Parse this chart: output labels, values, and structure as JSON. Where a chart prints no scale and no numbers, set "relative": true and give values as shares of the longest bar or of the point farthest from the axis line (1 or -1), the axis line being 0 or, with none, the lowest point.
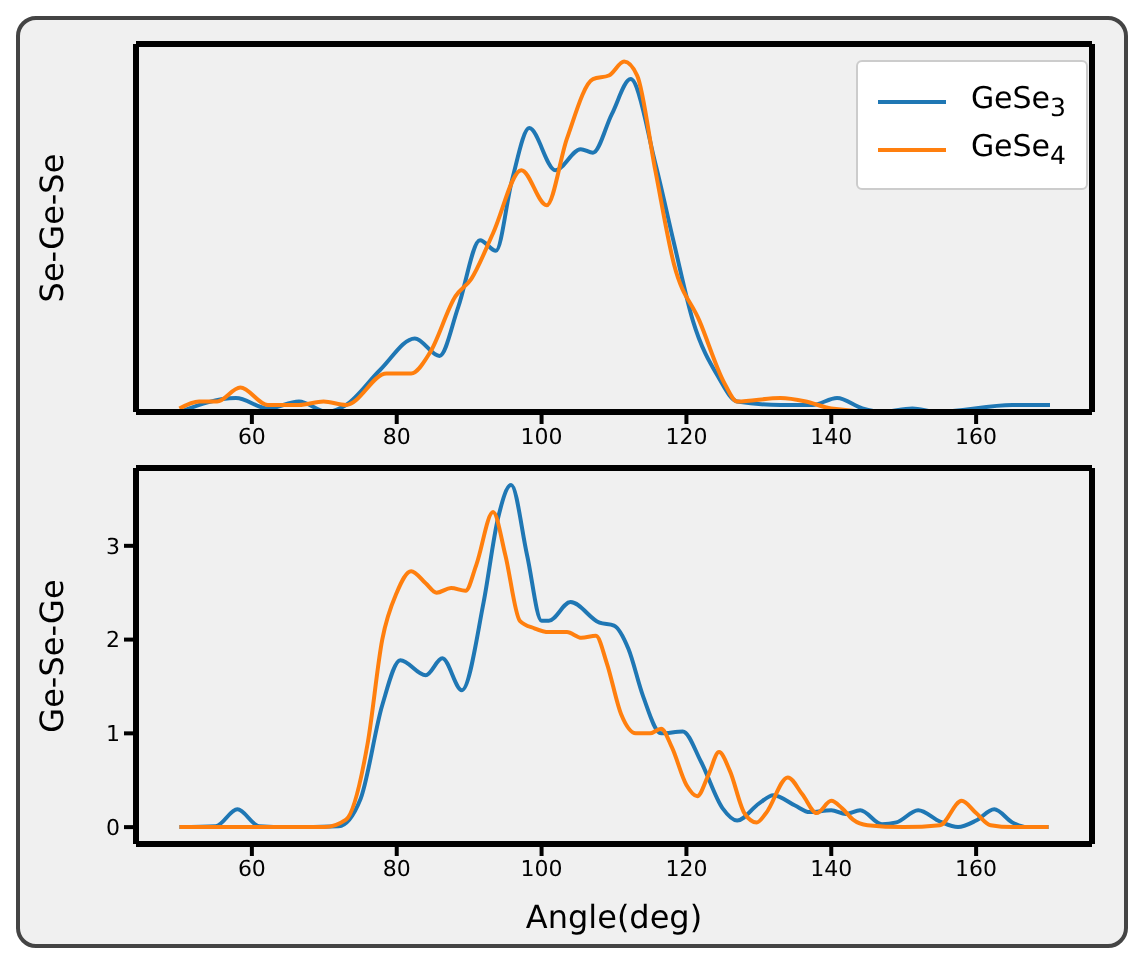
{
  "chart_data": [
    {
      "type": "line",
      "ylabel": "Se-Ge-Se",
      "relative": true,
      "tick_labels": "x",
      "legend": "top right",
      "xlim": [
        44,
        176
      ],
      "xticks": [
        60,
        80,
        100,
        120,
        140,
        160
      ],
      "series": [
        {
          "name": "GeSe$_{3}$",
          "color": "#1f77b4",
          "x": [
            50,
            57.8,
            62.2,
            66.5,
            70.4,
            73,
            77.7,
            82.5,
            85.9,
            88.5,
            91.5,
            93.7,
            95.9,
            98.3,
            101.9,
            105.4,
            107.1,
            109.7,
            112.3,
            115.7,
            118.3,
            120.9,
            124.4,
            127,
            133,
            137.4,
            140.8,
            144.3,
            146.9,
            151.2,
            154.6,
            165,
            170.2
          ],
          "values": [
            0,
            0.04,
            0.01,
            0.03,
            0,
            0.02,
            0.12,
            0.21,
            0.16,
            0.3,
            0.49,
            0.46,
            0.66,
            0.81,
            0.69,
            0.75,
            0.74,
            0.85,
            0.95,
            0.71,
            0.48,
            0.26,
            0.1,
            0.03,
            0.02,
            0.02,
            0.04,
            0.01,
            0,
            0.01,
            0,
            0.02,
            0.02
          ]
        },
        {
          "name": "GeSe$_{4}$",
          "color": "#ff7f0e",
          "x": [
            50,
            52.7,
            55.2,
            58.4,
            62.2,
            66.5,
            69.9,
            73,
            78.6,
            82,
            84.6,
            88.1,
            90.3,
            93.3,
            97.2,
            100.7,
            103.5,
            107.1,
            109.3,
            111.4,
            113.2,
            115.7,
            118.3,
            121.8,
            125.3,
            127,
            133,
            136.5,
            140,
            146.9,
            170
          ],
          "values": [
            0.01,
            0.03,
            0.03,
            0.07,
            0.02,
            0.02,
            0.03,
            0.02,
            0.11,
            0.11,
            0.17,
            0.33,
            0.38,
            0.51,
            0.69,
            0.59,
            0.78,
            0.95,
            0.96,
            1,
            0.96,
            0.69,
            0.42,
            0.26,
            0.08,
            0.03,
            0.04,
            0.03,
            0.01,
            0,
            0
          ]
        }
      ]
    },
    {
      "type": "line",
      "xlabel": "Angle(deg)",
      "ylabel": "Ge-Se-Ge",
      "xlim": [
        44,
        176
      ],
      "xticks": [
        60,
        80,
        100,
        120,
        140,
        160
      ],
      "ylim": [
        -0.18,
        3.83
      ],
      "yticks": [
        0,
        1,
        2,
        3
      ],
      "series": [
        {
          "color": "#1f77b4",
          "x": [
            50,
            55,
            58,
            61,
            65,
            72,
            75,
            78,
            80.5,
            84,
            86.3,
            89,
            92,
            94,
            95.8,
            98,
            100,
            101,
            104,
            108,
            110,
            112,
            114,
            116.5,
            119.5,
            122,
            125,
            127,
            130,
            132,
            135,
            137,
            140,
            142,
            144,
            147,
            149,
            152,
            155,
            157.5,
            160,
            162.5,
            165,
            167,
            170
          ],
          "values": [
            0,
            0.01,
            0.19,
            0.01,
            0,
            0.01,
            0.3,
            1.3,
            1.78,
            1.62,
            1.8,
            1.46,
            2.4,
            3.3,
            3.65,
            2.9,
            2.2,
            2.2,
            2.4,
            2.18,
            2.15,
            1.9,
            1.4,
            1,
            1.02,
            0.7,
            0.2,
            0.07,
            0.25,
            0.34,
            0.23,
            0.16,
            0.18,
            0.14,
            0.18,
            0.03,
            0.05,
            0.18,
            0.06,
            0,
            0.07,
            0.19,
            0.05,
            0,
            0
          ]
        },
        {
          "color": "#ff7f0e",
          "x": [
            50,
            70,
            73,
            76,
            78,
            80,
            82,
            84,
            85.5,
            87.5,
            89.5,
            91,
            93.3,
            95,
            97,
            99,
            101,
            103.5,
            105.5,
            107.5,
            109,
            111,
            113,
            115,
            116.5,
            118,
            120,
            121.5,
            123,
            124.5,
            126,
            128,
            129.7,
            131,
            134,
            136,
            138,
            140,
            141.5,
            143,
            145,
            150,
            155,
            158,
            160,
            162,
            165,
            170
          ],
          "values": [
            0,
            0,
            0.08,
            0.9,
            2,
            2.5,
            2.73,
            2.6,
            2.5,
            2.55,
            2.52,
            2.8,
            3.36,
            2.9,
            2.2,
            2.12,
            2.08,
            2.08,
            2.02,
            2.04,
            1.75,
            1.2,
            1,
            1,
            1.05,
            0.85,
            0.45,
            0.33,
            0.55,
            0.8,
            0.6,
            0.15,
            0.05,
            0.15,
            0.53,
            0.35,
            0.15,
            0.28,
            0.2,
            0.08,
            0.02,
            0,
            0.02,
            0.28,
            0.15,
            0.02,
            0,
            0
          ]
        }
      ]
    }
  ]
}
